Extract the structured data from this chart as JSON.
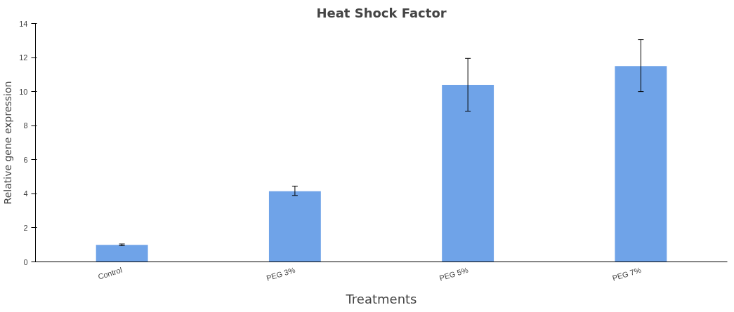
{
  "chart_data": {
    "type": "bar",
    "title": "Heat Shock Factor",
    "xlabel": "Treatments",
    "ylabel": "Relative gene expression",
    "categories": [
      "Control",
      "PEG 3%",
      "PEG 5%",
      "PEG 7%"
    ],
    "values": [
      1.0,
      4.15,
      10.4,
      11.5
    ],
    "errors": [
      [
        0.95,
        1.05
      ],
      [
        3.9,
        4.45
      ],
      [
        8.85,
        11.95
      ],
      [
        10.0,
        13.05
      ]
    ],
    "color": "#6fa3e8",
    "ylim": [
      0,
      14
    ],
    "yticks": [
      0,
      2,
      4,
      6,
      8,
      10,
      12,
      14
    ],
    "grid": false
  }
}
